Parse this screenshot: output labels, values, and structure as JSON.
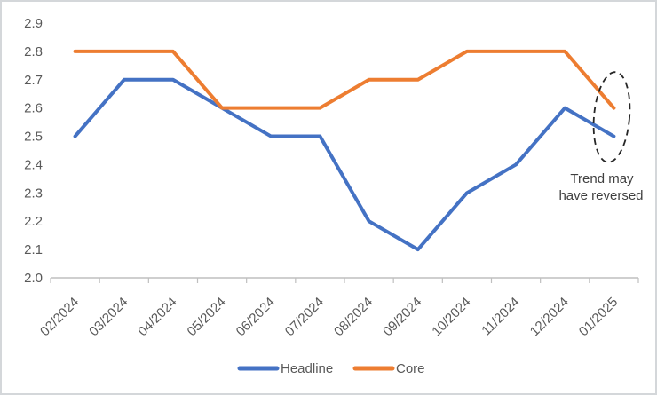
{
  "chart_data": {
    "type": "line",
    "categories": [
      "02/2024",
      "03/2024",
      "04/2024",
      "05/2024",
      "06/2024",
      "07/2024",
      "08/2024",
      "09/2024",
      "10/2024",
      "11/2024",
      "12/2024",
      "01/2025"
    ],
    "series": [
      {
        "name": "Headline",
        "color": "#4472C4",
        "values": [
          2.5,
          2.7,
          2.7,
          2.6,
          2.5,
          2.5,
          2.2,
          2.1,
          2.3,
          2.4,
          2.6,
          2.5
        ]
      },
      {
        "name": "Core",
        "color": "#ED7D31",
        "values": [
          2.8,
          2.8,
          2.8,
          2.6,
          2.6,
          2.6,
          2.7,
          2.7,
          2.8,
          2.8,
          2.8,
          2.6
        ]
      }
    ],
    "title": "",
    "xlabel": "",
    "ylabel": "",
    "ylim": [
      2.0,
      2.9
    ],
    "ytick_step": 0.1,
    "ytick_labels": [
      "2.0",
      "2.1",
      "2.2",
      "2.3",
      "2.4",
      "2.5",
      "2.6",
      "2.7",
      "2.8",
      "2.9"
    ],
    "grid": false,
    "legend_position": "bottom",
    "axis_color": "#bfbfbf",
    "label_color": "#595959"
  },
  "annotation": {
    "lines": [
      "Trend may",
      "have reversed"
    ],
    "color": "#404040",
    "ellipse_color": "#262626"
  }
}
